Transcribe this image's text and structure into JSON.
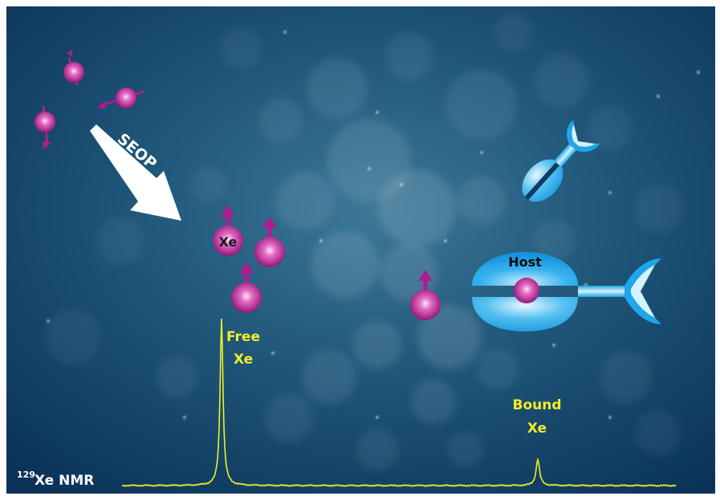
{
  "labels": {
    "seop": "SEOP",
    "xe": "Xe",
    "host": "Host",
    "free_line1": "Free",
    "free_line2": "Xe",
    "bound_line1": "Bound",
    "bound_line2": "Xe",
    "isotope_mass": "129",
    "nmr_suffix": "Xe NMR"
  },
  "colors": {
    "background_deep": "#0b3a63",
    "background_light": "#2f6a8c",
    "bokeh": "#e8eef2",
    "atom": "#b01c8f",
    "atom_highlight": "#f6c6ea",
    "spin_arrow": "#b01c8f",
    "host": "#1ea6ea",
    "host_light": "#bfe8fb",
    "spectrum": "#f1ee2a",
    "label_yellow": "#f1ee2a",
    "label_white": "#ffffff"
  },
  "icons": [
    "spin-polarized-xenon-atom-icon",
    "seop-arrow-icon",
    "host-molecule-icon",
    "targeting-antibody-icon",
    "nmr-spectrum-trace"
  ]
}
